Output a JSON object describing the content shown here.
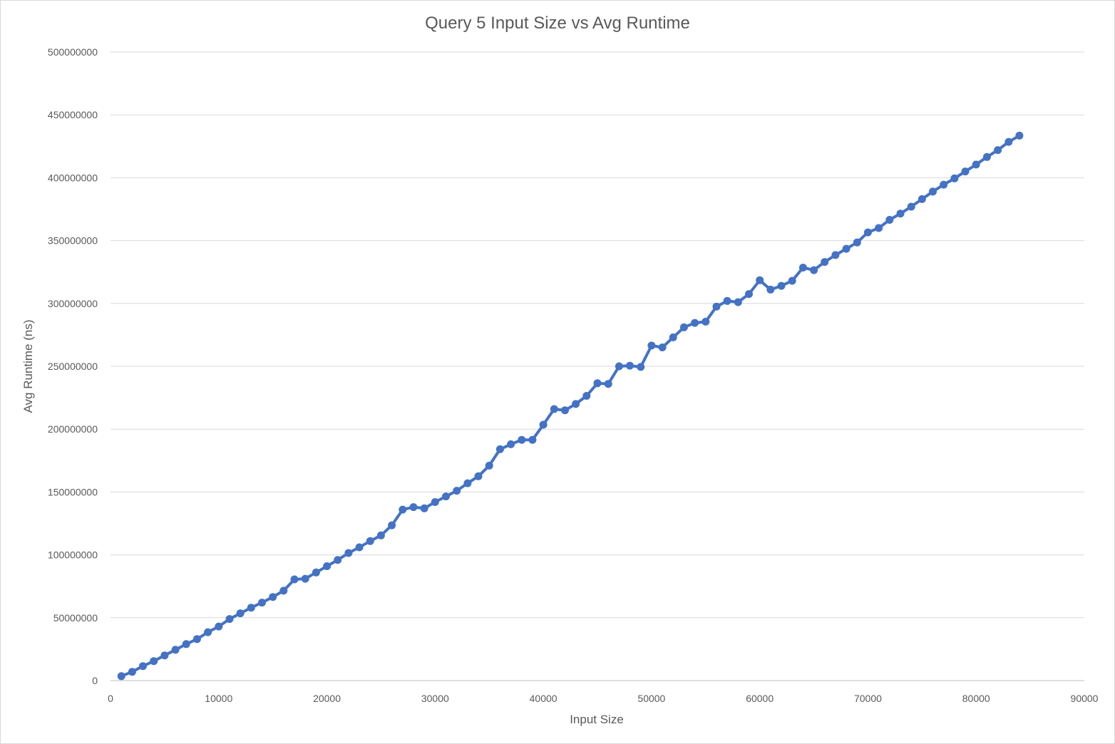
{
  "chart_data": {
    "type": "line",
    "title": "Query 5 Input Size vs Avg Runtime",
    "xlabel": "Input Size",
    "ylabel": "Avg Runtime (ns)",
    "xlim": [
      0,
      90000
    ],
    "ylim": [
      0,
      500000000
    ],
    "x_ticks": [
      "0",
      "10000",
      "20000",
      "30000",
      "40000",
      "50000",
      "60000",
      "70000",
      "80000",
      "90000"
    ],
    "y_ticks": [
      "0",
      "50000000",
      "100000000",
      "150000000",
      "200000000",
      "250000000",
      "300000000",
      "350000000",
      "400000000",
      "450000000",
      "500000000"
    ],
    "grid": true,
    "legend": "none",
    "color": "#4472C4",
    "series": [
      {
        "x": [
          1000,
          2000,
          3000,
          4000,
          5000,
          6000,
          7000,
          8000,
          9000,
          10000,
          11000,
          12000,
          13000,
          14000,
          15000,
          16000,
          17000,
          18000,
          19000,
          20000,
          21000,
          22000,
          23000,
          24000,
          25000,
          26000,
          27000,
          28000,
          29000,
          30000,
          31000,
          32000,
          33000,
          34000,
          35000,
          36000,
          37000,
          38000,
          39000,
          40000,
          41000,
          42000,
          43000,
          44000,
          45000,
          46000,
          47000,
          48000,
          49000,
          50000,
          51000,
          52000,
          53000,
          54000,
          55000,
          56000,
          57000,
          58000,
          59000,
          60000,
          61000,
          62000,
          63000,
          64000,
          65000,
          66000,
          67000,
          68000,
          69000,
          70000,
          71000,
          72000,
          73000,
          74000,
          75000,
          76000,
          77000,
          78000,
          79000,
          80000,
          81000,
          82000,
          83000,
          84000
        ],
        "values": [
          3500000,
          7000000,
          11500000,
          15500000,
          20000000,
          24500000,
          29000000,
          33000000,
          38500000,
          43000000,
          49000000,
          53500000,
          58000000,
          62000000,
          66500000,
          71500000,
          80500000,
          81000000,
          86000000,
          91000000,
          96000000,
          101500000,
          106000000,
          111000000,
          115500000,
          123500000,
          136000000,
          138000000,
          137000000,
          142000000,
          146500000,
          151000000,
          157000000,
          162500000,
          171000000,
          184000000,
          188000000,
          191500000,
          191500000,
          203500000,
          216000000,
          215000000,
          220000000,
          226500000,
          236500000,
          236000000,
          250000000,
          250500000,
          249500000,
          266500000,
          265000000,
          273000000,
          281000000,
          284500000,
          285500000,
          297500000,
          302000000,
          301000000,
          307500000,
          318500000,
          311000000,
          314000000,
          318000000,
          328500000,
          326500000,
          333000000,
          338500000,
          343500000,
          348500000,
          356500000,
          360000000,
          366500000,
          371500000,
          377000000,
          383000000,
          389000000,
          394500000,
          399500000,
          405000000,
          410500000,
          416500000,
          422000000,
          428500000,
          433500000
        ]
      }
    ]
  }
}
